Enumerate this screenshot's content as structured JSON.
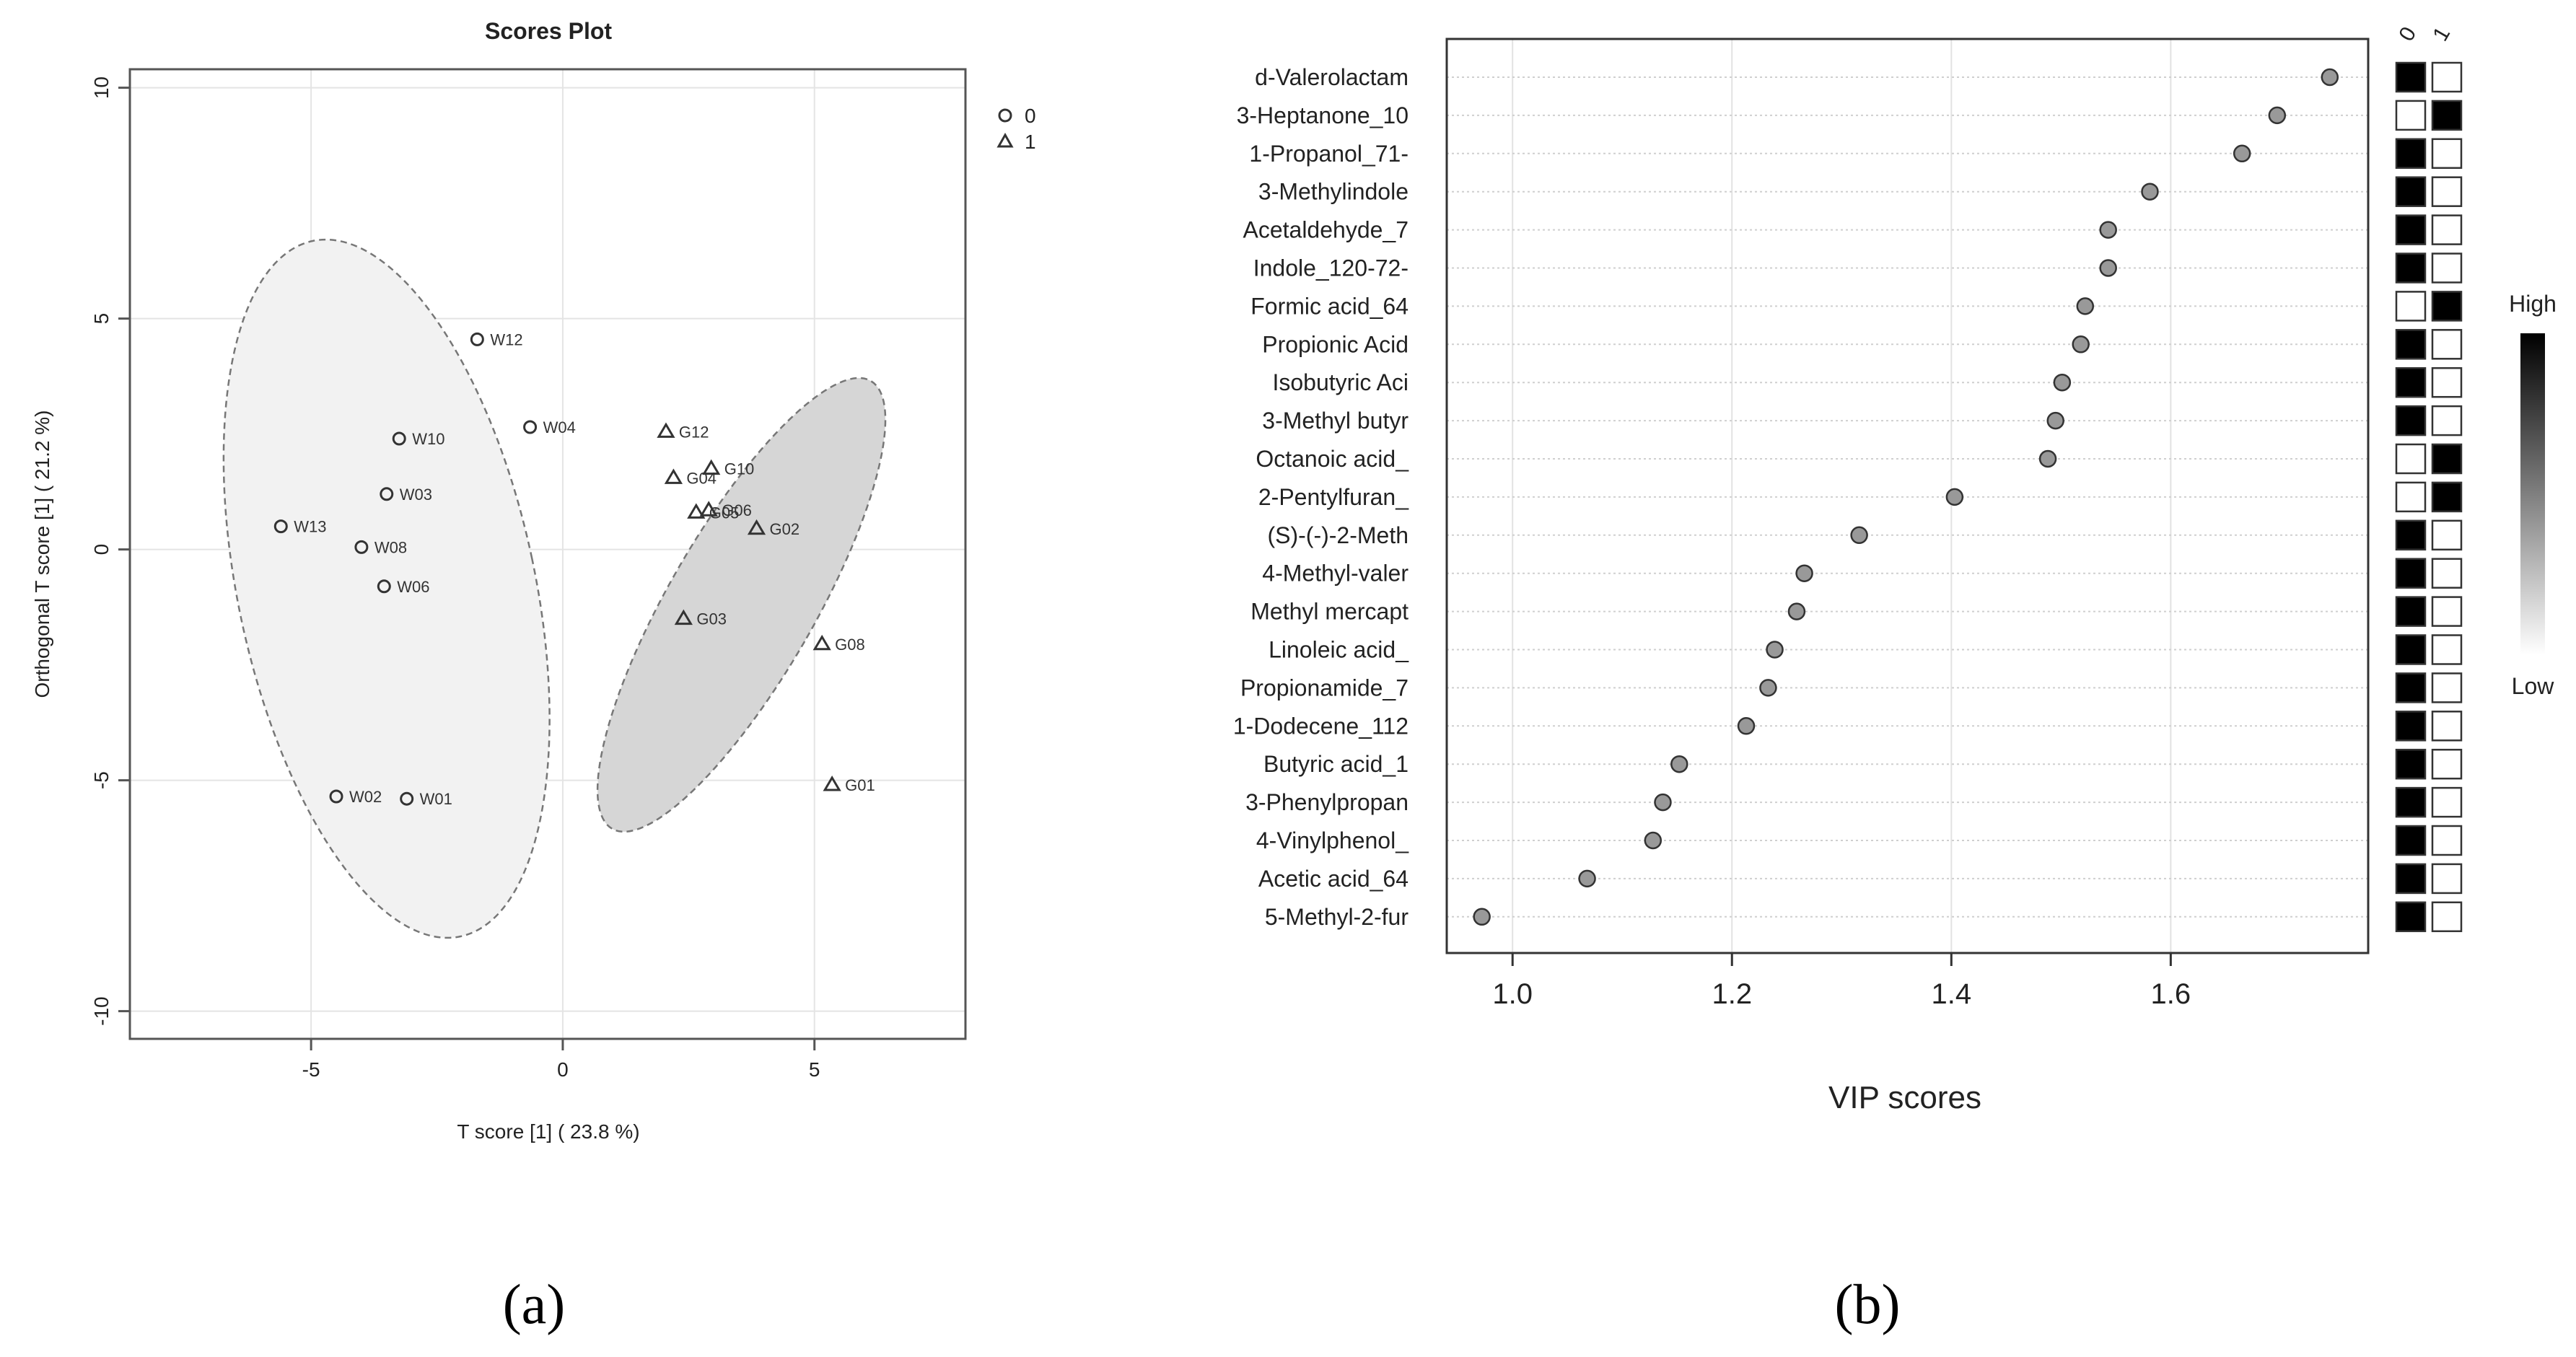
{
  "figure": {
    "panel_a_label": "(a)",
    "panel_b_label": "(b)"
  },
  "chart_data": [
    {
      "type": "scatter",
      "title": "Scores Plot",
      "xlabel": "T score [1] ( 23.8 %)",
      "ylabel": "Orthogonal T score [1] ( 21.2 %)",
      "xlim": [
        -8.6,
        8
      ],
      "ylim": [
        -10.6,
        10.4
      ],
      "xticks": [
        -5,
        0,
        5
      ],
      "yticks": [
        -10,
        -5,
        0,
        5,
        10
      ],
      "grid": true,
      "legend": {
        "position": "top-right",
        "entries": [
          {
            "label": "0",
            "symbol": "circle"
          },
          {
            "label": "1",
            "symbol": "triangle"
          }
        ]
      },
      "series": [
        {
          "name": "0",
          "symbol": "circle",
          "points": [
            {
              "label": "W12",
              "x": -1.7,
              "y": 4.55
            },
            {
              "label": "W04",
              "x": -0.65,
              "y": 2.65
            },
            {
              "label": "W10",
              "x": -3.25,
              "y": 2.4
            },
            {
              "label": "W03",
              "x": -3.5,
              "y": 1.2
            },
            {
              "label": "W13",
              "x": -5.6,
              "y": 0.5
            },
            {
              "label": "W08",
              "x": -4.0,
              "y": 0.05
            },
            {
              "label": "W06",
              "x": -3.55,
              "y": -0.8
            },
            {
              "label": "W02",
              "x": -4.5,
              "y": -5.35
            },
            {
              "label": "W01",
              "x": -3.1,
              "y": -5.4
            }
          ]
        },
        {
          "name": "1",
          "symbol": "triangle",
          "points": [
            {
              "label": "G12",
              "x": 2.05,
              "y": 2.55
            },
            {
              "label": "G10",
              "x": 2.95,
              "y": 1.75
            },
            {
              "label": "G04",
              "x": 2.2,
              "y": 1.55
            },
            {
              "label": "G06",
              "x": 2.9,
              "y": 0.85
            },
            {
              "label": "G05",
              "x": 2.65,
              "y": 0.8
            },
            {
              "label": "G02",
              "x": 3.85,
              "y": 0.45
            },
            {
              "label": "G03",
              "x": 2.4,
              "y": -1.5
            },
            {
              "label": "G08",
              "x": 5.15,
              "y": -2.05
            },
            {
              "label": "G01",
              "x": 5.35,
              "y": -5.1
            }
          ]
        }
      ],
      "ellipses": [
        {
          "group": "0",
          "center": [
            -3.5,
            -0.85
          ],
          "semi_axes": [
            2.95,
            7.7
          ],
          "angle_deg": -12,
          "fill": "#f2f2f2"
        },
        {
          "group": "1",
          "center": [
            3.55,
            -1.2
          ],
          "semi_axes": [
            1.45,
            5.6
          ],
          "angle_deg": 30,
          "fill": "#d6d6d6"
        }
      ]
    },
    {
      "type": "scatter",
      "subtype": "dot-plot",
      "xlabel": "VIP scores",
      "xlim": [
        0.94,
        1.78
      ],
      "xticks": [
        1.0,
        1.2,
        1.4,
        1.6
      ],
      "grid": true,
      "heatmap_columns": [
        "0",
        "1"
      ],
      "colorbar": {
        "high_label": "High",
        "low_label": "Low"
      },
      "colors": {
        "point_fill": "#999999",
        "high": "#000000",
        "low": "#ffffff"
      },
      "features": [
        {
          "name": "d-Valerolactam",
          "vip": 1.745,
          "col0": "high",
          "col1": "low"
        },
        {
          "name": "3-Heptanone_10",
          "vip": 1.697,
          "col0": "low",
          "col1": "high"
        },
        {
          "name": "1-Propanol_71-",
          "vip": 1.665,
          "col0": "high",
          "col1": "low"
        },
        {
          "name": "3-Methylindole",
          "vip": 1.581,
          "col0": "high",
          "col1": "low"
        },
        {
          "name": "Acetaldehyde_7",
          "vip": 1.543,
          "col0": "high",
          "col1": "low"
        },
        {
          "name": "Indole_120-72-",
          "vip": 1.543,
          "col0": "high",
          "col1": "low"
        },
        {
          "name": "Formic acid_64",
          "vip": 1.522,
          "col0": "low",
          "col1": "high"
        },
        {
          "name": "Propionic Acid",
          "vip": 1.518,
          "col0": "high",
          "col1": "low"
        },
        {
          "name": "Isobutyric Aci",
          "vip": 1.501,
          "col0": "high",
          "col1": "low"
        },
        {
          "name": "3-Methyl butyr",
          "vip": 1.495,
          "col0": "high",
          "col1": "low"
        },
        {
          "name": "Octanoic acid_",
          "vip": 1.488,
          "col0": "low",
          "col1": "high"
        },
        {
          "name": "2-Pentylfuran_",
          "vip": 1.403,
          "col0": "low",
          "col1": "high"
        },
        {
          "name": "(S)-(-)-2-Meth",
          "vip": 1.316,
          "col0": "high",
          "col1": "low"
        },
        {
          "name": "4-Methyl-valer",
          "vip": 1.266,
          "col0": "high",
          "col1": "low"
        },
        {
          "name": "Methyl mercapt",
          "vip": 1.259,
          "col0": "high",
          "col1": "low"
        },
        {
          "name": "Linoleic acid_",
          "vip": 1.239,
          "col0": "high",
          "col1": "low"
        },
        {
          "name": "Propionamide_7",
          "vip": 1.233,
          "col0": "high",
          "col1": "low"
        },
        {
          "name": "1-Dodecene_112",
          "vip": 1.213,
          "col0": "high",
          "col1": "low"
        },
        {
          "name": "Butyric acid_1",
          "vip": 1.152,
          "col0": "high",
          "col1": "low"
        },
        {
          "name": "3-Phenylpropan",
          "vip": 1.137,
          "col0": "high",
          "col1": "low"
        },
        {
          "name": "4-Vinylphenol_",
          "vip": 1.128,
          "col0": "high",
          "col1": "low"
        },
        {
          "name": "Acetic acid_64",
          "vip": 1.068,
          "col0": "high",
          "col1": "low"
        },
        {
          "name": "5-Methyl-2-fur",
          "vip": 0.972,
          "col0": "high",
          "col1": "low"
        }
      ]
    }
  ]
}
